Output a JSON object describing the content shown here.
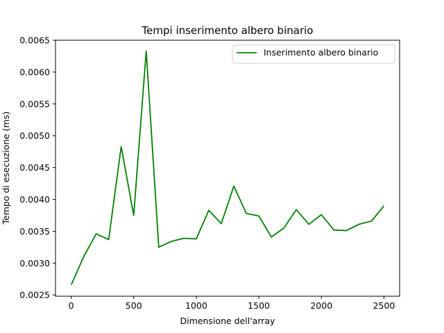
{
  "chart_data": {
    "type": "line",
    "title": "Tempi inserimento albero binario",
    "xlabel": "Dimensione dell'array",
    "ylabel": "Tempo di esecuzione (ms)",
    "xlim": [
      -125,
      2625
    ],
    "ylim": [
      0.00248,
      0.0065
    ],
    "xticks": [
      0,
      500,
      1000,
      1500,
      2000,
      2500
    ],
    "xtick_labels": [
      "0",
      "500",
      "1000",
      "1500",
      "2000",
      "2500"
    ],
    "yticks": [
      0.0025,
      0.003,
      0.0035,
      0.004,
      0.0045,
      0.005,
      0.0055,
      0.006,
      0.0065
    ],
    "ytick_labels": [
      "0.0025",
      "0.0030",
      "0.0035",
      "0.0040",
      "0.0045",
      "0.0050",
      "0.0055",
      "0.0060",
      "0.0065"
    ],
    "grid": false,
    "legend_position": "top-right",
    "series": [
      {
        "name": "Inserimento albero binario",
        "color": "#008000",
        "x": [
          1,
          100,
          200,
          300,
          400,
          500,
          600,
          700,
          800,
          900,
          1000,
          1100,
          1200,
          1300,
          1400,
          1500,
          1600,
          1700,
          1800,
          1900,
          2000,
          2100,
          2200,
          2300,
          2400,
          2500
        ],
        "y": [
          0.00266,
          0.0031,
          0.00346,
          0.00337,
          0.00483,
          0.00375,
          0.00633,
          0.00325,
          0.00334,
          0.00339,
          0.00338,
          0.00383,
          0.00362,
          0.00421,
          0.00378,
          0.00374,
          0.00341,
          0.00355,
          0.00384,
          0.00361,
          0.00376,
          0.00352,
          0.00351,
          0.00361,
          0.00366,
          0.0039
        ]
      }
    ]
  }
}
